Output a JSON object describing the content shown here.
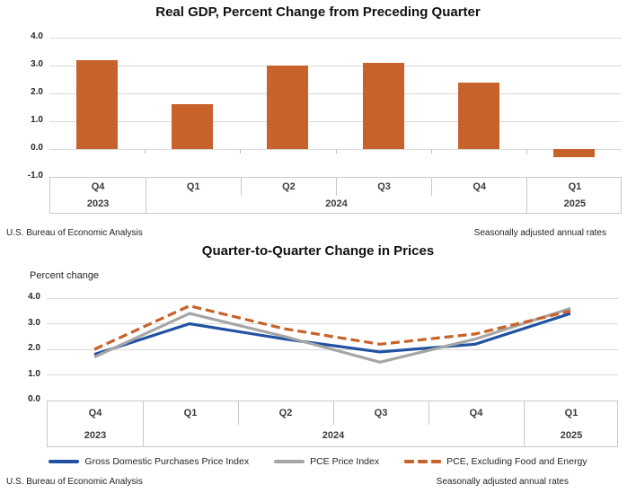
{
  "colors": {
    "bar_orange": "#C7622B",
    "line_blue": "#2152A2",
    "line_gray": "#A6A6A6",
    "line_orange": "#C7622B",
    "grid": "#D9D9D9",
    "band_border": "#C9C9C9",
    "text": "#1F1F1F"
  },
  "chart_data": [
    {
      "type": "bar",
      "title": "Real GDP, Percent Change from Preceding Quarter",
      "categories": [
        "Q4",
        "Q1",
        "Q2",
        "Q3",
        "Q4",
        "Q1"
      ],
      "year_groups": [
        {
          "label": "2023",
          "span": 1
        },
        {
          "label": "2024",
          "span": 4
        },
        {
          "label": "2025",
          "span": 1
        }
      ],
      "values": [
        3.2,
        1.6,
        3.0,
        3.1,
        2.4,
        -0.3
      ],
      "xlabel": "",
      "ylabel": "",
      "ylim": [
        -1.0,
        4.0
      ],
      "yticks": [
        "4.0",
        "3.0",
        "2.0",
        "1.0",
        "0.0",
        "-1.0"
      ],
      "grid": true,
      "source_left": "U.S. Bureau of Economic Analysis",
      "source_right": "Seasonally adjusted annual rates"
    },
    {
      "type": "line",
      "title": "Quarter-to-Quarter Change in Prices",
      "ylabel": "Percent change",
      "xlabel": "",
      "categories": [
        "Q4",
        "Q1",
        "Q2",
        "Q3",
        "Q4",
        "Q1"
      ],
      "year_groups": [
        {
          "label": "2023",
          "span": 1
        },
        {
          "label": "2024",
          "span": 4
        },
        {
          "label": "2025",
          "span": 1
        }
      ],
      "series": [
        {
          "name": "Gross Domestic Purchases Price Index",
          "style": "solid",
          "color_key": "line_blue",
          "values": [
            1.8,
            3.0,
            2.4,
            1.9,
            2.2,
            3.4
          ]
        },
        {
          "name": "PCE Price Index",
          "style": "solid",
          "color_key": "line_gray",
          "values": [
            1.7,
            3.4,
            2.5,
            1.5,
            2.4,
            3.6
          ]
        },
        {
          "name": "PCE, Excluding Food and Energy",
          "style": "dashed",
          "color_key": "line_orange",
          "values": [
            2.0,
            3.7,
            2.8,
            2.2,
            2.6,
            3.5
          ]
        }
      ],
      "ylim": [
        0.0,
        4.0
      ],
      "yticks": [
        "4.0",
        "3.0",
        "2.0",
        "1.0",
        "0.0"
      ],
      "grid": true,
      "legend_position": "bottom",
      "source_left": "U.S. Bureau of Economic Analysis",
      "source_right": "Seasonally adjusted annual rates"
    }
  ]
}
